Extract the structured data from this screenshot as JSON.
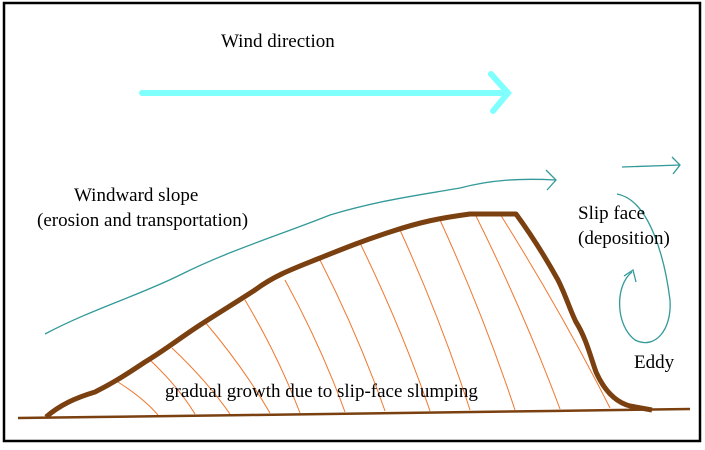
{
  "labels": {
    "wind_direction": "Wind direction",
    "windward_line1": "Windward slope",
    "windward_line2": "(erosion and transportation)",
    "slip_line1": "Slip face",
    "slip_line2": "(deposition)",
    "eddy": "Eddy",
    "growth": "gradual growth due to slip-face slumping"
  },
  "colors": {
    "wind_arrow": "#80ffff",
    "airflow": "#339999",
    "dune_outline": "#7a4010",
    "bedding": "#f07830",
    "ground": "#7a4010",
    "frame": "#000000"
  }
}
